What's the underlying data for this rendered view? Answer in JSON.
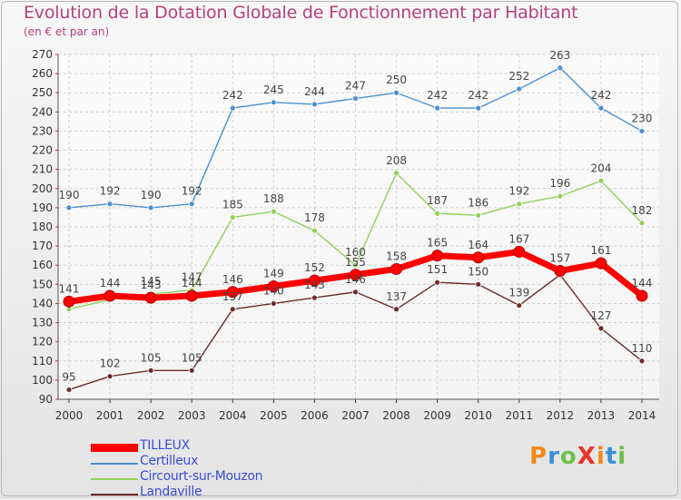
{
  "title": "Evolution de la Dotation Globale de Fonctionnement par Habitant",
  "subtitle": "(en € et par an)",
  "brand": {
    "text": "ProXiti",
    "colors": [
      "#f08a1c",
      "#3a8fd8",
      "#6cc04a",
      "#e8342a",
      "#f08a1c",
      "#3a8fd8",
      "#6cc04a"
    ]
  },
  "chart_data": {
    "type": "line",
    "x": [
      "2000",
      "2001",
      "2002",
      "2003",
      "2004",
      "2005",
      "2006",
      "2007",
      "2008",
      "2009",
      "2010",
      "2011",
      "2012",
      "2013",
      "2014"
    ],
    "ylim": [
      90,
      270
    ],
    "yticks": [
      "90",
      "100",
      "110",
      "120",
      "130",
      "140",
      "150",
      "160",
      "170",
      "180",
      "190",
      "200",
      "210",
      "220",
      "230",
      "240",
      "250",
      "260",
      "270"
    ],
    "grid": true,
    "legend_position": "bottom-left",
    "series": [
      {
        "name": "Certilleux",
        "color": "#4a90d0",
        "values": [
          190,
          192,
          190,
          192,
          242,
          245,
          244,
          247,
          250,
          242,
          242,
          252,
          263,
          242,
          230
        ]
      },
      {
        "name": "Circourt-sur-Mouzon",
        "color": "#8fd25a",
        "values": [
          137,
          142,
          145,
          147,
          185,
          188,
          178,
          160,
          208,
          187,
          186,
          192,
          196,
          204,
          182
        ]
      },
      {
        "name": "Landaville",
        "color": "#6e2a2a",
        "values": [
          95,
          102,
          105,
          105,
          137,
          140,
          143,
          146,
          137,
          151,
          150,
          139,
          155,
          127,
          110
        ]
      },
      {
        "name": "TILLEUX",
        "color": "#ff0000",
        "values": [
          141,
          144,
          143,
          144,
          146,
          149,
          152,
          155,
          158,
          165,
          164,
          167,
          157,
          161,
          144
        ]
      }
    ],
    "labels": {
      "Certilleux": [
        "190",
        "192",
        "190",
        "192",
        "242",
        "245",
        "244",
        "247",
        "250",
        "242",
        "242",
        "252",
        "263",
        "242",
        "230"
      ],
      "Circourt-sur-Mouzon": [
        "",
        "",
        "145",
        "147",
        "185",
        "188",
        "178",
        "160",
        "208",
        "187",
        "186",
        "192",
        "196",
        "204",
        "182"
      ],
      "Landaville": [
        "95",
        "102",
        "105",
        "105",
        "137",
        "140",
        "143",
        "146",
        "137",
        "151",
        "150",
        "139",
        "",
        "127",
        "110"
      ],
      "TILLEUX": [
        "141",
        "144",
        "143",
        "144",
        "146",
        "149",
        "152",
        "155",
        "158",
        "165",
        "164",
        "167",
        "157",
        "161",
        "144"
      ]
    }
  },
  "legend": [
    {
      "label": "TILLEUX",
      "color": "#ff0000"
    },
    {
      "label": "Certilleux",
      "color": "#4a90d0"
    },
    {
      "label": "Circourt-sur-Mouzon",
      "color": "#8fd25a"
    },
    {
      "label": "Landaville",
      "color": "#6e2a2a"
    }
  ]
}
